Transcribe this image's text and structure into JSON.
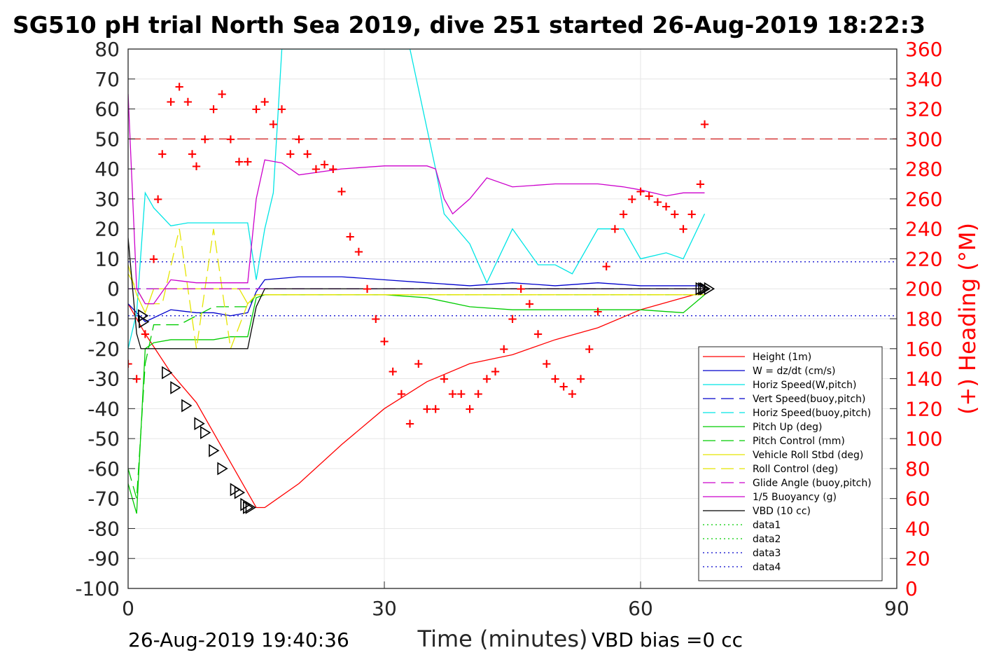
{
  "chart_data": {
    "type": "line",
    "title": "SG510 pH trial North Sea 2019, dive 251 started 26-Aug-2019 18:22:3",
    "xlabel": "Time (minutes)",
    "ylabel_right": "(+) Heading (°M)",
    "xlim": [
      0,
      90
    ],
    "ylim_left": [
      -100,
      80
    ],
    "ylim_right": [
      0,
      360
    ],
    "x_ticks": [
      0,
      30,
      60,
      90
    ],
    "y_ticks_left": [
      80,
      70,
      60,
      50,
      40,
      30,
      20,
      10,
      0,
      -10,
      -20,
      -30,
      -40,
      -50,
      -60,
      -70,
      -80,
      -90,
      -100
    ],
    "y_ticks_right": [
      360,
      340,
      320,
      300,
      280,
      260,
      240,
      220,
      200,
      180,
      160,
      140,
      120,
      100,
      80,
      60,
      40,
      20,
      0
    ],
    "grid": true,
    "legend_position": "bottom-right",
    "reference_line_heading": 300,
    "dotted_levels": [
      9,
      -9
    ],
    "series": [
      {
        "name": "Height (1m)",
        "color": "#ff0000",
        "style": "solid",
        "x": [
          0,
          2,
          5,
          8,
          10,
          12,
          14,
          15,
          16,
          20,
          25,
          30,
          35,
          40,
          45,
          50,
          55,
          60,
          65,
          67.5
        ],
        "y": [
          -5,
          -15,
          -28,
          -38,
          -48,
          -58,
          -68,
          -73,
          -73,
          -65,
          -52,
          -40,
          -31,
          -25,
          -22,
          -17,
          -13,
          -7,
          -3,
          -1
        ]
      },
      {
        "name": "W = dz/dt (cm/s)",
        "color": "#0000cc",
        "style": "solid",
        "x": [
          0,
          1,
          2,
          5,
          8,
          10,
          12,
          14,
          15,
          16,
          20,
          25,
          30,
          35,
          40,
          45,
          50,
          55,
          60,
          65,
          67.5
        ],
        "y": [
          -5,
          -8,
          -11,
          -7,
          -8,
          -8,
          -9,
          -8,
          -1,
          3,
          4,
          4,
          3,
          2,
          1,
          2,
          1,
          2,
          1,
          1,
          1
        ]
      },
      {
        "name": "Horiz Speed(W,pitch)",
        "color": "#00e5e5",
        "style": "solid",
        "x": [
          0,
          1,
          2,
          3,
          5,
          7,
          9,
          11,
          13,
          14,
          15,
          16,
          17,
          18,
          20,
          25,
          28,
          30,
          33,
          36,
          37,
          40,
          42,
          45,
          48,
          50,
          52,
          55,
          58,
          60,
          63,
          65,
          67.5
        ],
        "y": [
          -20,
          -8,
          32,
          27,
          21,
          22,
          22,
          22,
          22,
          22,
          3,
          20,
          32,
          80,
          80,
          80,
          80,
          80,
          80,
          40,
          25,
          15,
          2,
          20,
          8,
          8,
          5,
          20,
          20,
          10,
          12,
          10,
          25
        ]
      },
      {
        "name": "Vert Speed(buoy,pitch)",
        "color": "#0000cc",
        "style": "dashed",
        "x": [
          0,
          67.5
        ],
        "y": [
          0,
          0
        ]
      },
      {
        "name": "Horiz Speed(buoy,pitch)",
        "color": "#00e5e5",
        "style": "dashed",
        "x": [
          0,
          67.5
        ],
        "y": [
          0,
          0
        ]
      },
      {
        "name": "Pitch Up (deg)",
        "color": "#00cc00",
        "style": "solid",
        "x": [
          0,
          1,
          2,
          3,
          5,
          8,
          10,
          12,
          14,
          15,
          16,
          20,
          25,
          30,
          35,
          40,
          45,
          50,
          55,
          60,
          65,
          67.5
        ],
        "y": [
          -65,
          -75,
          -20,
          -18,
          -17,
          -17,
          -17,
          -16,
          -16,
          -3,
          -2,
          -2,
          -2,
          -2,
          -3,
          -6,
          -7,
          -7,
          -7,
          -7,
          -8,
          -2
        ]
      },
      {
        "name": "Pitch Control (mm)",
        "color": "#00cc00",
        "style": "dashed",
        "x": [
          0,
          1,
          2,
          3,
          6,
          10,
          14,
          15,
          16,
          67.5
        ],
        "y": [
          -60,
          -70,
          -25,
          -12,
          -12,
          -6,
          -6,
          -2,
          -2,
          -2
        ]
      },
      {
        "name": "Vehicle Roll Stbd (deg)",
        "color": "#e5e500",
        "style": "solid",
        "x": [
          0,
          1,
          2,
          3,
          5,
          7,
          9,
          11,
          13,
          14,
          15,
          16,
          30,
          60,
          67.5
        ],
        "y": [
          8,
          -2,
          -8,
          0,
          0,
          0,
          0,
          0,
          0,
          -5,
          -2,
          -2,
          -2,
          -2,
          -2
        ]
      },
      {
        "name": "Roll Control (deg)",
        "color": "#e5e500",
        "style": "dashed",
        "x": [
          0,
          2,
          4,
          6,
          8,
          10,
          12,
          14,
          15,
          16,
          67.5
        ],
        "y": [
          5,
          -5,
          -5,
          20,
          -20,
          20,
          -20,
          -5,
          -2,
          -2,
          -2
        ]
      },
      {
        "name": "Glide Angle (buoy,pitch)",
        "color": "#cc00cc",
        "style": "dashed",
        "x": [
          0,
          67.5
        ],
        "y": [
          0,
          0
        ]
      },
      {
        "name": "1/5 Buoyancy (g)",
        "color": "#cc00cc",
        "style": "solid",
        "x": [
          0,
          1,
          2,
          3,
          5,
          8,
          12,
          14,
          15,
          16,
          18,
          20,
          25,
          30,
          35,
          36,
          37,
          38,
          40,
          42,
          45,
          50,
          55,
          58,
          60,
          63,
          65,
          67.5
        ],
        "y": [
          65,
          0,
          -5,
          -5,
          3,
          2,
          2,
          2,
          30,
          43,
          42,
          38,
          40,
          41,
          41,
          40,
          30,
          25,
          30,
          37,
          34,
          35,
          35,
          34,
          33,
          31,
          32,
          32
        ]
      },
      {
        "name": "VBD (10 cc)",
        "color": "#000000",
        "style": "solid",
        "x": [
          0,
          1,
          1.5,
          2,
          14,
          15,
          16,
          66,
          67.5
        ],
        "y": [
          17,
          -15,
          -20,
          -20,
          -20,
          -6,
          0,
          0,
          0
        ]
      },
      {
        "name": "data1",
        "color": "#00cc00",
        "style": "dotted",
        "x": [],
        "y": []
      },
      {
        "name": "data2",
        "color": "#00cc00",
        "style": "dotted",
        "x": [],
        "y": []
      },
      {
        "name": "data3",
        "color": "#0000cc",
        "style": "dotted",
        "x": [],
        "y": []
      },
      {
        "name": "data4",
        "color": "#0000cc",
        "style": "dotted",
        "x": [],
        "y": []
      }
    ],
    "heading_series": {
      "name": "(+) Heading (°M)",
      "axis": "right",
      "color": "#ff0000",
      "marker": "+",
      "x": [
        0,
        1,
        2,
        3,
        3.5,
        4,
        5,
        6,
        7,
        7.5,
        8,
        9,
        10,
        11,
        12,
        13,
        14,
        15,
        16,
        17,
        18,
        19,
        20,
        21,
        22,
        23,
        24,
        25,
        26,
        27,
        28,
        29,
        30,
        31,
        32,
        33,
        34,
        35,
        36,
        37,
        38,
        39,
        40,
        41,
        42,
        43,
        44,
        45,
        46,
        47,
        48,
        49,
        50,
        51,
        52,
        53,
        54,
        55,
        56,
        57,
        58,
        59,
        60,
        61,
        62,
        63,
        64,
        65,
        66,
        67,
        67.5
      ],
      "y": [
        150,
        140,
        170,
        220,
        260,
        290,
        325,
        335,
        325,
        290,
        282,
        300,
        320,
        330,
        300,
        285,
        285,
        320,
        325,
        310,
        320,
        290,
        300,
        290,
        280,
        283,
        280,
        265,
        235,
        225,
        200,
        180,
        165,
        145,
        130,
        110,
        150,
        120,
        120,
        140,
        130,
        130,
        120,
        130,
        140,
        145,
        160,
        180,
        200,
        190,
        170,
        150,
        140,
        135,
        130,
        140,
        160,
        185,
        215,
        240,
        250,
        260,
        265,
        262,
        258,
        255,
        250,
        240,
        250,
        270,
        310
      ]
    },
    "waypoints_series": {
      "color": "#000000",
      "marker": "triangle",
      "x": [
        1.7,
        1.8,
        4.5,
        5.5,
        6.8,
        8.3,
        9,
        10,
        11,
        12.5,
        13,
        13.7,
        14,
        14.3,
        67,
        67.3,
        67.5,
        68
      ],
      "y": [
        -9,
        -11,
        -28,
        -33,
        -39,
        -45,
        -48,
        -54,
        -60,
        -67,
        -68,
        -72,
        -73,
        -73,
        0,
        0,
        0,
        0
      ]
    },
    "footer_left": "26-Aug-2019 19:40:36",
    "footer_right": "VBD bias =0 cc"
  }
}
